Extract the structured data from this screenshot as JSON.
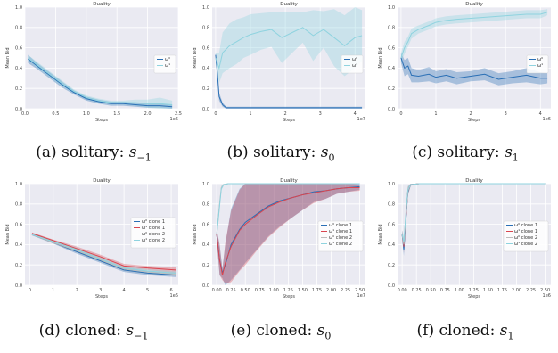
{
  "figure": {
    "captions": [
      {
        "prefix": "(a) solitary: ",
        "var": "s",
        "sub": "−1"
      },
      {
        "prefix": "(b) solitary: ",
        "var": "s",
        "sub": "0"
      },
      {
        "prefix": "(c) solitary: ",
        "var": "s",
        "sub": "1"
      },
      {
        "prefix": "(d) cloned: ",
        "var": "s",
        "sub": "−1"
      },
      {
        "prefix": "(e) cloned: ",
        "var": "s",
        "sub": "0"
      },
      {
        "prefix": "(f) cloned: ",
        "var": "s",
        "sub": "1"
      }
    ]
  },
  "chart_data": [
    {
      "type": "line",
      "title": "Duality",
      "xlabel": "Steps",
      "ylabel": "Mean Bid",
      "xlim": [
        0,
        2.5
      ],
      "ylim": [
        0,
        1.0
      ],
      "x_multiplier": "1e6",
      "xticks": [
        0.0,
        0.5,
        1.0,
        1.5,
        2.0,
        2.5
      ],
      "yticks": [
        0.0,
        0.2,
        0.4,
        0.6,
        0.8,
        1.0
      ],
      "grid": true,
      "legend_position": "center-right",
      "series": [
        {
          "name": "ω⁰",
          "color": "#2a6fb5",
          "x": [
            0.05,
            0.2,
            0.4,
            0.6,
            0.8,
            1.0,
            1.2,
            1.4,
            1.6,
            1.8,
            2.0,
            2.2,
            2.4
          ],
          "y": [
            0.49,
            0.42,
            0.33,
            0.24,
            0.16,
            0.1,
            0.07,
            0.05,
            0.05,
            0.04,
            0.03,
            0.03,
            0.02
          ],
          "band": [
            0.04,
            0.03,
            0.03,
            0.03,
            0.02,
            0.02,
            0.02,
            0.02,
            0.02,
            0.02,
            0.02,
            0.02,
            0.02
          ]
        },
        {
          "name": "ω¹",
          "color": "#8fd3df",
          "x": [
            0.05,
            0.2,
            0.4,
            0.6,
            0.8,
            1.0,
            1.2,
            1.4,
            1.6,
            1.8,
            2.0,
            2.2,
            2.4
          ],
          "y": [
            0.5,
            0.43,
            0.34,
            0.25,
            0.17,
            0.11,
            0.08,
            0.06,
            0.06,
            0.06,
            0.05,
            0.05,
            0.04
          ],
          "band": [
            0.03,
            0.03,
            0.03,
            0.03,
            0.02,
            0.02,
            0.02,
            0.02,
            0.02,
            0.03,
            0.04,
            0.06,
            0.04
          ]
        }
      ]
    },
    {
      "type": "line",
      "title": "Duality",
      "xlabel": "Steps",
      "ylabel": "Mean Bid",
      "xlim": [
        -0.1,
        4.3
      ],
      "ylim": [
        0,
        1.0
      ],
      "x_multiplier": "1e7",
      "xticks": [
        0,
        1,
        2,
        3,
        4
      ],
      "yticks": [
        0.0,
        0.2,
        0.4,
        0.6,
        0.8,
        1.0
      ],
      "grid": true,
      "legend_position": "center-right",
      "series": [
        {
          "name": "ω⁰",
          "color": "#2a6fb5",
          "x": [
            0.0,
            0.05,
            0.1,
            0.2,
            0.3,
            0.5,
            1.0,
            2.0,
            3.0,
            4.2
          ],
          "y": [
            0.53,
            0.35,
            0.12,
            0.04,
            0.01,
            0.01,
            0.01,
            0.01,
            0.01,
            0.01
          ],
          "band": [
            0.02,
            0.04,
            0.04,
            0.02,
            0.01,
            0.01,
            0.01,
            0.01,
            0.01,
            0.01
          ]
        },
        {
          "name": "ω¹",
          "color": "#8fd3df",
          "x": [
            0.0,
            0.1,
            0.2,
            0.4,
            0.6,
            0.8,
            1.0,
            1.3,
            1.6,
            1.9,
            2.2,
            2.5,
            2.8,
            3.1,
            3.4,
            3.7,
            4.0,
            4.2
          ],
          "y": [
            0.5,
            0.4,
            0.55,
            0.62,
            0.66,
            0.7,
            0.73,
            0.76,
            0.78,
            0.7,
            0.75,
            0.8,
            0.72,
            0.78,
            0.7,
            0.62,
            0.7,
            0.72
          ],
          "band": [
            0.05,
            0.15,
            0.2,
            0.22,
            0.22,
            0.2,
            0.2,
            0.18,
            0.17,
            0.25,
            0.2,
            0.15,
            0.25,
            0.18,
            0.28,
            0.3,
            0.3,
            0.25
          ]
        }
      ]
    },
    {
      "type": "line",
      "title": "Duality",
      "xlabel": "Steps",
      "ylabel": "Mean Bid",
      "xlim": [
        -0.1,
        4.3
      ],
      "ylim": [
        0,
        1.0
      ],
      "x_multiplier": "1e6",
      "xticks": [
        0,
        1,
        2,
        3,
        4
      ],
      "yticks": [
        0.0,
        0.2,
        0.4,
        0.6,
        0.8,
        1.0
      ],
      "grid": true,
      "legend_position": "center-right",
      "series": [
        {
          "name": "ω⁰",
          "color": "#2a6fb5",
          "x": [
            0.0,
            0.1,
            0.2,
            0.3,
            0.5,
            0.8,
            1.0,
            1.3,
            1.6,
            2.0,
            2.4,
            2.8,
            3.2,
            3.6,
            4.0,
            4.2
          ],
          "y": [
            0.5,
            0.4,
            0.42,
            0.33,
            0.32,
            0.34,
            0.31,
            0.33,
            0.3,
            0.32,
            0.34,
            0.29,
            0.31,
            0.33,
            0.3,
            0.3
          ],
          "band": [
            0.05,
            0.08,
            0.08,
            0.07,
            0.06,
            0.07,
            0.06,
            0.06,
            0.06,
            0.05,
            0.06,
            0.06,
            0.06,
            0.07,
            0.06,
            0.05
          ]
        },
        {
          "name": "ω¹",
          "color": "#8fd3df",
          "x": [
            0.0,
            0.1,
            0.2,
            0.3,
            0.5,
            0.8,
            1.0,
            1.3,
            1.6,
            2.0,
            2.4,
            2.8,
            3.2,
            3.6,
            4.0,
            4.2
          ],
          "y": [
            0.5,
            0.6,
            0.66,
            0.74,
            0.78,
            0.82,
            0.85,
            0.87,
            0.88,
            0.89,
            0.9,
            0.91,
            0.92,
            0.93,
            0.93,
            0.95
          ],
          "band": [
            0.05,
            0.06,
            0.05,
            0.05,
            0.04,
            0.04,
            0.04,
            0.04,
            0.04,
            0.04,
            0.04,
            0.04,
            0.04,
            0.04,
            0.04,
            0.03
          ]
        }
      ]
    },
    {
      "type": "line",
      "title": "Duality",
      "xlabel": "Steps",
      "ylabel": "Mean Bid",
      "xlim": [
        -0.2,
        6.3
      ],
      "ylim": [
        0,
        1.0
      ],
      "x_multiplier": "1e6",
      "xticks": [
        0,
        1,
        2,
        3,
        4,
        5,
        6
      ],
      "yticks": [
        0.0,
        0.2,
        0.4,
        0.6,
        0.8,
        1.0
      ],
      "grid": true,
      "legend_position": "upper-right",
      "series": [
        {
          "name": "ω⁰ clone 1",
          "color": "#2a6fb5",
          "x": [
            0.1,
            1,
            2,
            3,
            4,
            5,
            6.2
          ],
          "y": [
            0.5,
            0.42,
            0.33,
            0.24,
            0.15,
            0.12,
            0.1
          ],
          "band": [
            0.01,
            0.01,
            0.02,
            0.02,
            0.02,
            0.02,
            0.02
          ]
        },
        {
          "name": "ω¹ clone 1",
          "color": "#d9454f",
          "x": [
            0.1,
            1,
            2,
            3,
            4,
            5,
            6.2
          ],
          "y": [
            0.51,
            0.44,
            0.36,
            0.28,
            0.19,
            0.17,
            0.15
          ],
          "band": [
            0.01,
            0.01,
            0.02,
            0.02,
            0.02,
            0.02,
            0.03
          ]
        },
        {
          "name": "ω⁰ clone 2",
          "color": "#bdbdbd",
          "x": [
            0.1,
            1,
            2,
            3,
            4,
            5,
            6.2
          ],
          "y": [
            0.5,
            0.42,
            0.34,
            0.25,
            0.16,
            0.13,
            0.11
          ],
          "band": [
            0.01,
            0.01,
            0.02,
            0.02,
            0.02,
            0.02,
            0.02
          ]
        },
        {
          "name": "ω¹ clone 2",
          "color": "#8fd3df",
          "x": [
            0.1,
            1,
            2,
            3,
            4,
            5,
            6.2
          ],
          "y": [
            0.5,
            0.43,
            0.35,
            0.26,
            0.17,
            0.14,
            0.12
          ],
          "band": [
            0.01,
            0.01,
            0.02,
            0.02,
            0.02,
            0.02,
            0.02
          ]
        }
      ]
    },
    {
      "type": "line",
      "title": "Duality",
      "xlabel": "Steps",
      "ylabel": "Mean Bid",
      "xlim": [
        -0.08,
        2.6
      ],
      "ylim": [
        0,
        1.0
      ],
      "x_multiplier": "1e7",
      "xticks": [
        0.0,
        0.25,
        0.5,
        0.75,
        1.0,
        1.25,
        1.5,
        1.75,
        2.0,
        2.25,
        2.5
      ],
      "yticks": [
        0.0,
        0.2,
        0.4,
        0.6,
        0.8,
        1.0
      ],
      "grid": true,
      "legend_position": "center-right",
      "series": [
        {
          "name": "ω⁰ clone 1",
          "color": "#2a6fb5",
          "x": [
            0.0,
            0.05,
            0.1,
            0.15,
            0.25,
            0.4,
            0.5,
            0.7,
            0.9,
            1.1,
            1.3,
            1.5,
            1.7,
            1.9,
            2.1,
            2.3,
            2.5
          ],
          "y": [
            0.5,
            0.25,
            0.12,
            0.2,
            0.4,
            0.55,
            0.62,
            0.7,
            0.78,
            0.83,
            0.86,
            0.89,
            0.92,
            0.93,
            0.95,
            0.96,
            0.97
          ],
          "band": [
            0.05,
            0.15,
            0.05,
            0.2,
            0.35,
            0.4,
            0.4,
            0.35,
            0.3,
            0.25,
            0.2,
            0.15,
            0.1,
            0.08,
            0.05,
            0.04,
            0.03
          ]
        },
        {
          "name": "ω¹ clone 1",
          "color": "#d9454f",
          "x": [
            0.0,
            0.05,
            0.1,
            0.15,
            0.25,
            0.4,
            0.5,
            0.7,
            0.9,
            1.1,
            1.3,
            1.5,
            1.7,
            1.9,
            2.1,
            2.3,
            2.5
          ],
          "y": [
            0.5,
            0.25,
            0.1,
            0.22,
            0.38,
            0.54,
            0.6,
            0.69,
            0.77,
            0.82,
            0.86,
            0.89,
            0.91,
            0.93,
            0.95,
            0.96,
            0.96
          ],
          "band": [
            0.05,
            0.15,
            0.05,
            0.2,
            0.35,
            0.4,
            0.4,
            0.35,
            0.3,
            0.25,
            0.2,
            0.15,
            0.1,
            0.08,
            0.05,
            0.04,
            0.03
          ]
        },
        {
          "name": "ω⁰ clone 2",
          "color": "#bdbdbd",
          "x": [
            0.0,
            0.05,
            0.08,
            0.12,
            0.2,
            0.4,
            0.8,
            1.2,
            1.6,
            2.0,
            2.5
          ],
          "y": [
            0.5,
            0.8,
            0.96,
            0.99,
            1.0,
            1.0,
            1.0,
            1.0,
            1.0,
            1.0,
            1.0
          ],
          "band": [
            0.03,
            0.05,
            0.02,
            0.01,
            0.0,
            0.0,
            0.0,
            0.0,
            0.0,
            0.0,
            0.0
          ]
        },
        {
          "name": "ω¹ clone 2",
          "color": "#8fd3df",
          "x": [
            0.0,
            0.05,
            0.08,
            0.12,
            0.2,
            0.4,
            0.8,
            1.2,
            1.6,
            2.0,
            2.5
          ],
          "y": [
            0.5,
            0.78,
            0.95,
            0.99,
            1.0,
            1.0,
            1.0,
            1.0,
            1.0,
            1.0,
            1.0
          ],
          "band": [
            0.03,
            0.05,
            0.02,
            0.01,
            0.0,
            0.0,
            0.0,
            0.0,
            0.0,
            0.0,
            0.0
          ]
        }
      ]
    },
    {
      "type": "line",
      "title": "Duality",
      "xlabel": "Steps",
      "ylabel": "Mean Bid",
      "xlim": [
        -0.08,
        2.6
      ],
      "ylim": [
        0,
        1.0
      ],
      "x_multiplier": "1e6",
      "xticks": [
        0.0,
        0.25,
        0.5,
        0.75,
        1.0,
        1.25,
        1.5,
        1.75,
        2.0,
        2.25,
        2.5
      ],
      "yticks": [
        0.0,
        0.2,
        0.4,
        0.6,
        0.8,
        1.0
      ],
      "grid": true,
      "legend_position": "center-right",
      "series": [
        {
          "name": "ω⁰ clone 1",
          "color": "#2a6fb5",
          "x": [
            0.0,
            0.03,
            0.06,
            0.1,
            0.15,
            0.3,
            0.6,
            1.0,
            1.5,
            2.0,
            2.5
          ],
          "y": [
            0.5,
            0.35,
            0.6,
            0.92,
            0.99,
            1.0,
            1.0,
            1.0,
            1.0,
            1.0,
            1.0
          ],
          "band": [
            0.04,
            0.06,
            0.08,
            0.04,
            0.01,
            0.0,
            0.0,
            0.0,
            0.0,
            0.0,
            0.0
          ]
        },
        {
          "name": "ω¹ clone 1",
          "color": "#d9454f",
          "x": [
            0.0,
            0.03,
            0.06,
            0.1,
            0.15,
            0.3,
            0.6,
            1.0,
            1.5,
            2.0,
            2.5
          ],
          "y": [
            0.5,
            0.38,
            0.62,
            0.93,
            0.99,
            1.0,
            1.0,
            1.0,
            1.0,
            1.0,
            1.0
          ],
          "band": [
            0.04,
            0.06,
            0.08,
            0.04,
            0.01,
            0.0,
            0.0,
            0.0,
            0.0,
            0.0,
            0.0
          ]
        },
        {
          "name": "ω⁰ clone 2",
          "color": "#bdbdbd",
          "x": [
            0.0,
            0.03,
            0.06,
            0.1,
            0.15,
            0.3,
            0.6,
            1.0,
            1.5,
            2.0,
            2.5
          ],
          "y": [
            0.5,
            0.4,
            0.64,
            0.93,
            0.99,
            1.0,
            1.0,
            1.0,
            1.0,
            1.0,
            1.0
          ],
          "band": [
            0.04,
            0.06,
            0.08,
            0.04,
            0.01,
            0.0,
            0.0,
            0.0,
            0.0,
            0.0,
            0.0
          ]
        },
        {
          "name": "ω¹ clone 2",
          "color": "#8fd3df",
          "x": [
            0.0,
            0.03,
            0.06,
            0.1,
            0.15,
            0.3,
            0.6,
            1.0,
            1.5,
            2.0,
            2.5
          ],
          "y": [
            0.5,
            0.42,
            0.66,
            0.94,
            0.99,
            1.0,
            1.0,
            1.0,
            1.0,
            1.0,
            1.0
          ],
          "band": [
            0.04,
            0.06,
            0.08,
            0.04,
            0.01,
            0.0,
            0.0,
            0.0,
            0.0,
            0.0,
            0.0
          ]
        }
      ]
    }
  ]
}
